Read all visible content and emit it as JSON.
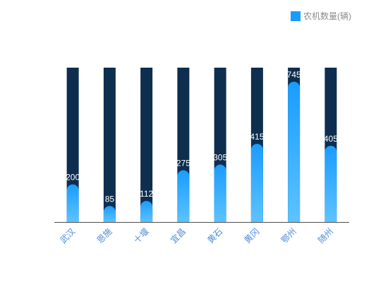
{
  "legend": {
    "label": "农机数量(辆)",
    "swatch_color": "#1a9cff"
  },
  "colors": {
    "track": "#0d2e4f",
    "bar_top": "#1a9cff",
    "bar_bottom": "#5cc3ff",
    "axis": "#4d4d4d",
    "tick_text": "#4f8fd8",
    "value_text": "#ffffff"
  },
  "chart_data": {
    "type": "bar",
    "categories": [
      "武汉",
      "恩施",
      "十堰",
      "宜昌",
      "黄石",
      "黄冈",
      "鄂州",
      "随州"
    ],
    "series": [
      {
        "name": "农机数量(辆)",
        "values": [
          200,
          85,
          112,
          275,
          305,
          415,
          745,
          405
        ]
      }
    ],
    "value_labels": [
      "200",
      "85",
      "112",
      "275",
      "305",
      "415",
      "745",
      "405"
    ],
    "ylim": [
      0,
      820
    ],
    "grid": false,
    "legend_position": "top-right",
    "x_label_rotation": -45
  }
}
